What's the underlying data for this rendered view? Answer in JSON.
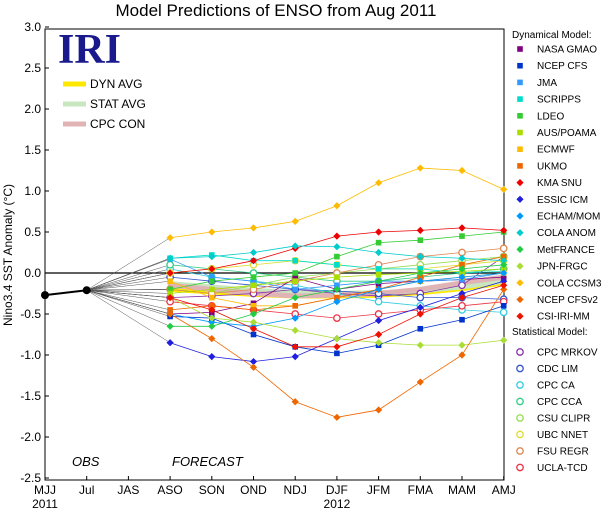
{
  "chart_data": {
    "type": "line",
    "title": "Model Predictions of ENSO from Aug 2011",
    "ylabel": "Nino3.4 SST Anomaly (°C)",
    "logo": "IRI",
    "obs_label": "OBS",
    "forecast_label": "FORECAST",
    "x": [
      "MJJ",
      "JJA",
      "JAS",
      "ASO",
      "SON",
      "OND",
      "NDJ",
      "DJF",
      "JFM",
      "FMA",
      "MAM",
      "AMJ"
    ],
    "x_tick_labels": [
      "MJJ",
      "Jul",
      "JAS",
      "ASO",
      "SON",
      "OND",
      "NDJ",
      "DJF",
      "JFM",
      "FMA",
      "MAM",
      "AMJ"
    ],
    "year_labels": [
      {
        "label": "2011",
        "at": "MJJ"
      },
      {
        "label": "2012",
        "at": "DJF"
      }
    ],
    "ylim": [
      -2.5,
      3.0
    ],
    "y_ticks": [
      "-2.5",
      "-2.0",
      "-1.5",
      "-1.0",
      "-0.5",
      "0.0",
      "0.5",
      "1.0",
      "1.5",
      "2.0",
      "2.5",
      "3.0"
    ],
    "observed": {
      "MJJ": -0.27,
      "JJA": -0.21
    },
    "averages": [
      {
        "name": "DYN AVG",
        "color": "#ffe800",
        "values": [
          -0.2,
          -0.23,
          -0.26,
          -0.28,
          -0.28,
          -0.27,
          -0.24,
          -0.19,
          -0.12
        ]
      },
      {
        "name": "STAT AVG",
        "color": "#c8e6c0",
        "values": [
          -0.13,
          -0.17,
          -0.21,
          -0.24,
          -0.25,
          -0.24,
          -0.22,
          -0.17,
          -0.1
        ]
      },
      {
        "name": "CPC CON",
        "color": "#e0b4b4",
        "values": [
          -0.15,
          -0.2,
          -0.25,
          -0.28,
          -0.27,
          -0.25,
          -0.2,
          -0.12,
          -0.05
        ]
      }
    ],
    "legend_headers": {
      "dynamical": "Dynamical Model:",
      "statistical": "Statistical Model:"
    },
    "dynamical_models": [
      {
        "name": "NASA GMAO",
        "color": "#800080",
        "marker": "square",
        "values": [
          -0.5,
          -0.48,
          -0.37,
          -0.06,
          -0.2,
          -0.13,
          -0.1,
          -0.08,
          -0.05
        ]
      },
      {
        "name": "NCEP CFS",
        "color": "#0033cc",
        "marker": "square",
        "values": [
          -0.53,
          -0.55,
          -0.75,
          -0.9,
          -0.98,
          -0.88,
          -0.68,
          -0.57,
          -0.4
        ]
      },
      {
        "name": "JMA",
        "color": "#3399ff",
        "marker": "square",
        "values": [
          0.17,
          -0.05,
          -0.1,
          -0.2,
          -0.15,
          -0.1,
          -0.1,
          -0.08,
          0.0
        ]
      },
      {
        "name": "SCRIPPS",
        "color": "#00ddcc",
        "marker": "square",
        "values": [
          0.18,
          0.22,
          0.15,
          0.15,
          0.1,
          0.05,
          0.05,
          0.0,
          0.02
        ]
      },
      {
        "name": "LDEO",
        "color": "#33cc33",
        "marker": "square",
        "values": [
          -0.2,
          -0.1,
          -0.05,
          0.0,
          0.2,
          0.37,
          0.4,
          0.45,
          0.5
        ]
      },
      {
        "name": "AUS/POAMA",
        "color": "#aadd00",
        "marker": "square",
        "values": [
          -0.25,
          -0.2,
          -0.15,
          -0.1,
          -0.05,
          -0.02,
          0.0,
          0.02,
          0.05
        ]
      },
      {
        "name": "ECMWF",
        "color": "#ffbb00",
        "marker": "square",
        "values": [
          -0.1,
          -0.3,
          -0.4,
          -0.4,
          -0.3,
          -0.2,
          -0.1,
          -0.05,
          0.0
        ]
      },
      {
        "name": "UKMO",
        "color": "#ee6600",
        "marker": "square",
        "values": [
          -0.45,
          -0.4,
          -0.45,
          -0.4,
          -0.3,
          -0.2,
          -0.05,
          0.1,
          0.2
        ]
      },
      {
        "name": "KMA SNU",
        "color": "#ee0000",
        "marker": "diamond",
        "values": [
          0.0,
          0.05,
          0.15,
          0.3,
          0.45,
          0.5,
          0.52,
          0.55,
          0.52
        ]
      },
      {
        "name": "ESSIC ICM",
        "color": "#1f1fdd",
        "marker": "diamond",
        "values": [
          -0.85,
          -1.02,
          -1.08,
          -1.02,
          -0.8,
          -0.58,
          -0.42,
          -0.25,
          -0.1
        ]
      },
      {
        "name": "ECHAM/MOM",
        "color": "#0099ff",
        "marker": "diamond",
        "values": [
          -0.5,
          -0.6,
          -0.65,
          -0.55,
          -0.35,
          -0.2,
          -0.1,
          -0.05,
          0.0
        ]
      },
      {
        "name": "COLA ANOM",
        "color": "#00cccc",
        "marker": "diamond",
        "values": [
          0.18,
          0.2,
          0.25,
          0.33,
          0.32,
          0.25,
          0.2,
          0.18,
          0.15
        ]
      },
      {
        "name": "MetFRANCE",
        "color": "#22cc44",
        "marker": "diamond",
        "values": [
          -0.65,
          -0.65,
          -0.5,
          -0.3,
          -0.2,
          -0.1,
          0.0,
          0.05,
          0.1
        ]
      },
      {
        "name": "JPN-FRGC",
        "color": "#aadd33",
        "marker": "diamond",
        "values": [
          -0.3,
          -0.55,
          -0.6,
          -0.7,
          -0.8,
          -0.85,
          -0.88,
          -0.88,
          -0.82
        ]
      },
      {
        "name": "COLA CCSM3",
        "color": "#ffbb00",
        "marker": "diamond",
        "values": [
          0.43,
          0.5,
          0.55,
          0.63,
          0.82,
          1.1,
          1.28,
          1.25,
          1.02
        ]
      },
      {
        "name": "NCEP CFSv2",
        "color": "#ee6600",
        "marker": "diamond",
        "values": [
          -0.5,
          -0.8,
          -1.15,
          -1.57,
          -1.76,
          -1.67,
          -1.33,
          -1.0,
          -0.2
        ]
      },
      {
        "name": "CSI-IRI-MM",
        "color": "#ee1100",
        "marker": "diamond",
        "values": [
          -0.3,
          -0.45,
          -0.68,
          -0.9,
          -0.9,
          -0.75,
          -0.5,
          -0.3,
          -0.15
        ]
      }
    ],
    "statistical_models": [
      {
        "name": "CPC MRKOV",
        "color": "#8833aa",
        "marker": "circle",
        "values": [
          -0.3,
          -0.28,
          -0.25,
          -0.2,
          -0.25,
          -0.28,
          -0.25,
          -0.15,
          0.2
        ]
      },
      {
        "name": "CDC LIM",
        "color": "#3355cc",
        "marker": "circle",
        "values": [
          -0.05,
          -0.1,
          -0.15,
          -0.2,
          -0.22,
          -0.25,
          -0.3,
          -0.3,
          -0.32
        ]
      },
      {
        "name": "CPC CA",
        "color": "#33ccdd",
        "marker": "circle",
        "values": [
          0.05,
          -0.05,
          -0.1,
          -0.15,
          -0.25,
          -0.35,
          -0.4,
          -0.45,
          -0.48
        ]
      },
      {
        "name": "CPC CCA",
        "color": "#33cc88",
        "marker": "circle",
        "values": [
          0.1,
          0.05,
          0.0,
          -0.05,
          -0.1,
          -0.1,
          -0.05,
          0.0,
          0.05
        ]
      },
      {
        "name": "CSU CLIPR",
        "color": "#99dd55",
        "marker": "circle",
        "values": [
          -0.2,
          -0.25,
          -0.15,
          -0.05,
          0.0,
          0.05,
          0.1,
          0.15,
          0.2
        ]
      },
      {
        "name": "UBC NNET",
        "color": "#dddd33",
        "marker": "circle",
        "values": [
          0.0,
          0.05,
          0.1,
          0.15,
          0.1,
          0.05,
          0.05,
          0.1,
          0.15
        ]
      },
      {
        "name": "FSU REGR",
        "color": "#dd8855",
        "marker": "circle",
        "values": [
          -0.2,
          -0.25,
          -0.2,
          -0.1,
          0.0,
          0.1,
          0.2,
          0.25,
          0.3
        ]
      },
      {
        "name": "UCLA-TCD",
        "color": "#ee3344",
        "marker": "circle",
        "values": [
          -0.35,
          -0.4,
          -0.45,
          -0.5,
          -0.55,
          -0.5,
          -0.45,
          -0.4,
          -0.35
        ]
      }
    ]
  }
}
